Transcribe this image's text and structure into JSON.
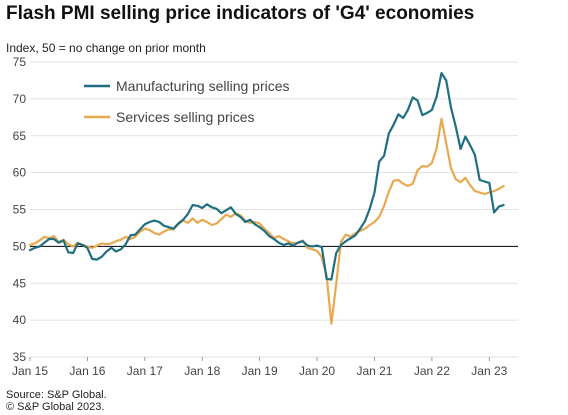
{
  "title": "Flash PMI selling price indicators of 'G4' economies",
  "subtitle": "Index, 50 = no change on prior month",
  "source_lines": [
    "Source: S&P Global.",
    "© S&P Global 2023."
  ],
  "colors": {
    "manufacturing": "#1f6e81",
    "services": "#e8a94e",
    "grid": "#d9d9d9",
    "baseline": "#000000"
  },
  "chart_data": {
    "type": "line",
    "title": "Flash PMI selling price indicators of 'G4' economies",
    "ylabel": "Index, 50 = no change on prior month",
    "ylim": [
      35,
      75
    ],
    "yticks": [
      35,
      40,
      45,
      50,
      55,
      60,
      65,
      70,
      75
    ],
    "xlim": [
      2015.0,
      2023.5
    ],
    "xticks": [
      {
        "label": "Jan 15",
        "value": 2015.0
      },
      {
        "label": "Jan 16",
        "value": 2016.0
      },
      {
        "label": "Jan 17",
        "value": 2017.0
      },
      {
        "label": "Jan 18",
        "value": 2018.0
      },
      {
        "label": "Jan 19",
        "value": 2019.0
      },
      {
        "label": "Jan 20",
        "value": 2020.0
      },
      {
        "label": "Jan 21",
        "value": 2021.0
      },
      {
        "label": "Jan 22",
        "value": 2022.0
      },
      {
        "label": "Jan 23",
        "value": 2023.0
      }
    ],
    "reference_line": 50,
    "grid": "horizontal",
    "legend_position": "top-left",
    "x": [
      2015.0,
      2015.083,
      2015.167,
      2015.25,
      2015.333,
      2015.417,
      2015.5,
      2015.583,
      2015.667,
      2015.75,
      2015.833,
      2015.917,
      2016.0,
      2016.083,
      2016.167,
      2016.25,
      2016.333,
      2016.417,
      2016.5,
      2016.583,
      2016.667,
      2016.75,
      2016.833,
      2016.917,
      2017.0,
      2017.083,
      2017.167,
      2017.25,
      2017.333,
      2017.417,
      2017.5,
      2017.583,
      2017.667,
      2017.75,
      2017.833,
      2017.917,
      2018.0,
      2018.083,
      2018.167,
      2018.25,
      2018.333,
      2018.417,
      2018.5,
      2018.583,
      2018.667,
      2018.75,
      2018.833,
      2018.917,
      2019.0,
      2019.083,
      2019.167,
      2019.25,
      2019.333,
      2019.417,
      2019.5,
      2019.583,
      2019.667,
      2019.75,
      2019.833,
      2019.917,
      2020.0,
      2020.083,
      2020.167,
      2020.25,
      2020.333,
      2020.417,
      2020.5,
      2020.583,
      2020.667,
      2020.75,
      2020.833,
      2020.917,
      2021.0,
      2021.083,
      2021.167,
      2021.25,
      2021.333,
      2021.417,
      2021.5,
      2021.583,
      2021.667,
      2021.75,
      2021.833,
      2021.917,
      2022.0,
      2022.083,
      2022.167,
      2022.25,
      2022.333,
      2022.417,
      2022.5,
      2022.583,
      2022.667,
      2022.75,
      2022.833,
      2022.917,
      2023.0,
      2023.083,
      2023.167,
      2023.25
    ],
    "series": [
      {
        "name": "Manufacturing selling prices",
        "values": [
          49.5,
          49.8,
          50.0,
          50.5,
          51.0,
          51.0,
          50.5,
          50.8,
          49.2,
          49.1,
          50.4,
          50.2,
          49.8,
          48.3,
          48.2,
          48.6,
          49.3,
          49.8,
          49.3,
          49.6,
          50.3,
          51.5,
          51.6,
          52.3,
          53.0,
          53.3,
          53.5,
          53.3,
          52.8,
          52.6,
          52.4,
          53.1,
          53.6,
          54.4,
          55.6,
          55.5,
          55.2,
          55.7,
          55.3,
          55.1,
          54.5,
          54.9,
          55.3,
          54.4,
          54.0,
          53.3,
          53.6,
          53.0,
          52.6,
          52.1,
          51.4,
          51.0,
          50.5,
          50.2,
          50.4,
          50.1,
          50.5,
          50.7,
          50.1,
          50.0,
          50.1,
          49.9,
          45.6,
          45.5,
          49.1,
          50.2,
          50.7,
          51.1,
          51.5,
          52.4,
          53.4,
          55.1,
          57.3,
          61.5,
          62.3,
          65.3,
          66.5,
          67.9,
          67.4,
          68.5,
          70.2,
          69.8,
          67.8,
          68.1,
          68.5,
          70.3,
          73.5,
          72.5,
          68.8,
          66.2,
          63.2,
          64.9,
          63.7,
          62.4,
          59.0,
          58.8,
          58.6,
          54.6,
          55.4,
          55.6
        ]
      },
      {
        "name": "Services selling prices",
        "values": [
          50.2,
          50.4,
          50.8,
          51.3,
          51.1,
          51.4,
          50.6,
          50.9,
          50.3,
          50.0,
          50.5,
          50.2,
          50.0,
          49.8,
          50.1,
          50.4,
          50.3,
          50.4,
          50.7,
          50.9,
          51.3,
          51.0,
          51.3,
          52.0,
          52.4,
          52.2,
          51.8,
          51.6,
          52.0,
          52.3,
          52.3,
          53.0,
          53.5,
          53.2,
          53.8,
          53.2,
          53.6,
          53.3,
          52.9,
          53.1,
          53.7,
          54.3,
          54.0,
          54.5,
          54.2,
          53.5,
          53.2,
          53.3,
          53.1,
          52.4,
          51.8,
          51.1,
          51.4,
          51.0,
          50.7,
          50.4,
          50.5,
          50.8,
          49.8,
          49.6,
          49.4,
          48.5,
          46.0,
          39.5,
          44.9,
          50.6,
          51.6,
          51.3,
          51.8,
          52.1,
          52.4,
          52.9,
          53.3,
          54.0,
          55.5,
          57.4,
          58.9,
          59.0,
          58.5,
          58.2,
          58.5,
          60.3,
          60.9,
          60.8,
          61.3,
          63.3,
          67.3,
          64.0,
          60.6,
          59.1,
          58.7,
          59.3,
          58.3,
          57.5,
          57.3,
          57.1,
          57.3,
          57.5,
          57.8,
          58.2
        ]
      }
    ]
  }
}
